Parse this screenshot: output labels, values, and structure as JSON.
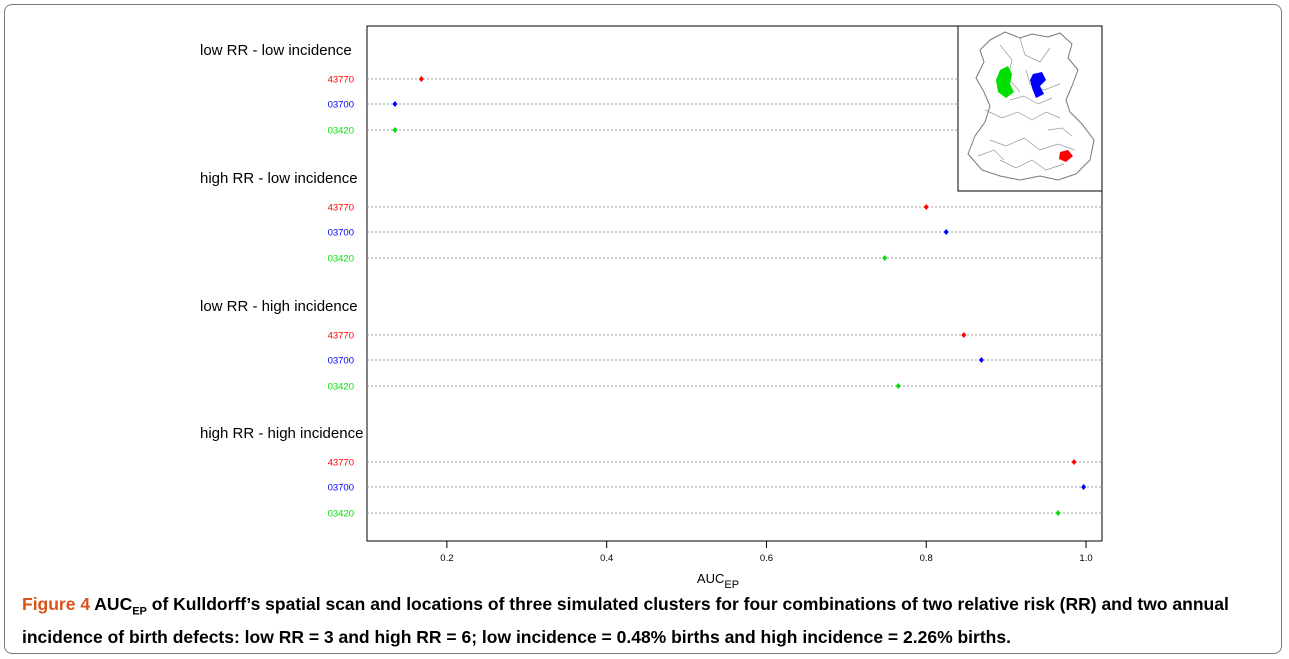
{
  "chart_data": {
    "type": "scatter",
    "xlabel": "AUC",
    "xlabel_sub": "EP",
    "xlim": [
      0.1,
      1.02
    ],
    "xticks": [
      0.2,
      0.4,
      0.6,
      0.8,
      1.0
    ],
    "xtick_labels": [
      "0.2",
      "0.4",
      "0.6",
      "0.8",
      "1.0"
    ],
    "grid": "horizontal dotted lines per series",
    "colors": {
      "43770": "#ff0000",
      "03700": "#0000ff",
      "03420": "#00e000"
    },
    "groups": [
      {
        "label": "low RR -  low incidence",
        "points": [
          {
            "name": "43770",
            "value": 0.168
          },
          {
            "name": "03700",
            "value": 0.135
          },
          {
            "name": "03420",
            "value": 0.135
          }
        ]
      },
      {
        "label": "high RR - low incidence",
        "points": [
          {
            "name": "43770",
            "value": 0.8
          },
          {
            "name": "03700",
            "value": 0.825
          },
          {
            "name": "03420",
            "value": 0.748
          }
        ]
      },
      {
        "label": "low RR -  high incidence",
        "points": [
          {
            "name": "43770",
            "value": 0.847
          },
          {
            "name": "03700",
            "value": 0.869
          },
          {
            "name": "03420",
            "value": 0.765
          }
        ]
      },
      {
        "label": "high RR - high incidence",
        "points": [
          {
            "name": "43770",
            "value": 0.985
          },
          {
            "name": "03700",
            "value": 0.997
          },
          {
            "name": "03420",
            "value": 0.965
          }
        ]
      }
    ],
    "inset_map": {
      "cluster_colors": [
        "#00e000",
        "#0000ff",
        "#ff0000"
      ]
    }
  },
  "caption": {
    "figure_label": "Figure 4",
    "text_1": "AUC",
    "text_1_sub": "EP",
    "text_2": " of Kulldorff’s spatial scan and locations of three simulated clusters for four combinations of two relative risk (RR) and two annual incidence of birth defects: low RR = 3 and high RR = 6; low incidence = 0.48% births and high incidence = 2.26% births."
  }
}
